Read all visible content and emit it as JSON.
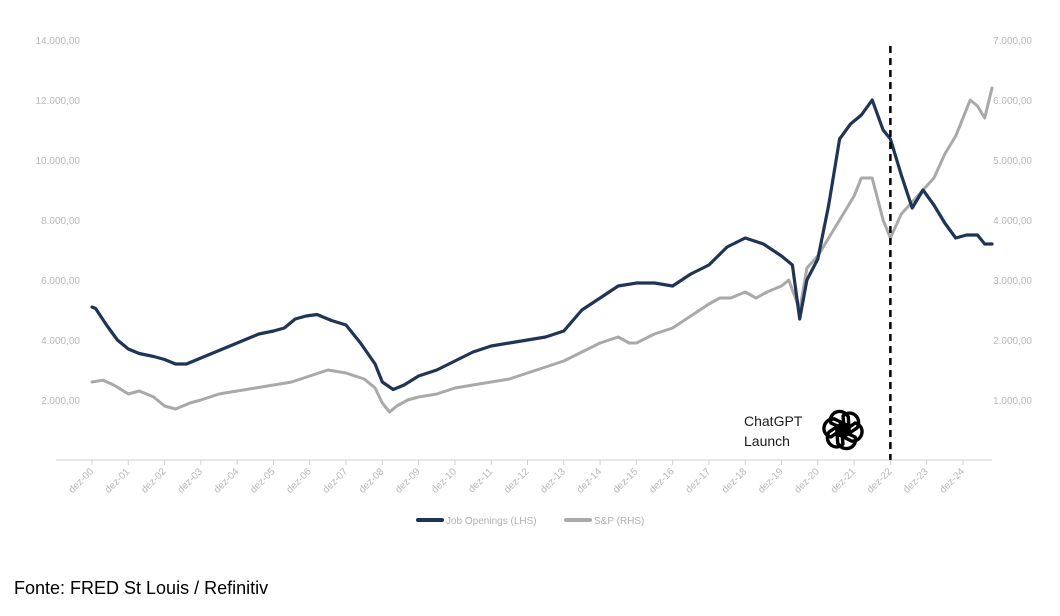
{
  "source_note": "Fonte: FRED St Louis / Refinitiv",
  "annotation": {
    "line1": "ChatGPT",
    "line2": "Launch",
    "x": 22
  },
  "colors": {
    "job_openings": "#1f3556",
    "sp": "#a9a9a9",
    "axis": "#d0d0d0",
    "marker": "#000000"
  },
  "logo": {
    "icon": "openai-logo-icon"
  },
  "chart_data": {
    "type": "line",
    "title": "",
    "xlabel": "",
    "x_ticks": [
      "dez-00",
      "dez-01",
      "dez-02",
      "dez-03",
      "dez-04",
      "dez-05",
      "dez-06",
      "dez-07",
      "dez-08",
      "dez-09",
      "dez-10",
      "dez-11",
      "dez-12",
      "dez-13",
      "dez-14",
      "dez-15",
      "dez-16",
      "dez-17",
      "dez-18",
      "dez-19",
      "dez-20",
      "dez-21",
      "dez-22",
      "dez-23",
      "dez-24"
    ],
    "xlim": [
      0,
      24.8
    ],
    "y_left": {
      "label": "",
      "lim": [
        0,
        14000
      ],
      "ticks": [
        "14.000,00",
        "12.000,00",
        "10.000,00",
        "8.000,00",
        "6.000,00",
        "4.000,00",
        "2.000,00"
      ],
      "tick_values": [
        14000,
        12000,
        10000,
        8000,
        6000,
        4000,
        2000
      ]
    },
    "y_right": {
      "label": "",
      "lim": [
        0,
        7000
      ],
      "ticks": [
        "7.000,00",
        "6.000,00",
        "5.000,00",
        "4.000,00",
        "3.000,00",
        "2.000,00",
        "1.000,00"
      ],
      "tick_values": [
        7000,
        6000,
        5000,
        4000,
        3000,
        2000,
        1000
      ]
    },
    "legend_position": "bottom-center",
    "series": [
      {
        "name": "Job Openings (LHS)",
        "axis": "left",
        "x": [
          0,
          0.1,
          0.4,
          0.7,
          1.0,
          1.3,
          1.7,
          2.0,
          2.3,
          2.6,
          3.0,
          3.4,
          3.8,
          4.2,
          4.6,
          5.0,
          5.3,
          5.6,
          5.9,
          6.2,
          6.6,
          7.0,
          7.4,
          7.8,
          8.0,
          8.3,
          8.6,
          9.0,
          9.5,
          10.0,
          10.5,
          11.0,
          11.5,
          12.0,
          12.5,
          13.0,
          13.5,
          14.0,
          14.5,
          15.0,
          15.5,
          16.0,
          16.5,
          17.0,
          17.5,
          18.0,
          18.5,
          19.0,
          19.3,
          19.5,
          19.7,
          20.0,
          20.3,
          20.6,
          20.9,
          21.2,
          21.5,
          21.8,
          22.0,
          22.3,
          22.6,
          22.9,
          23.2,
          23.5,
          23.8,
          24.1,
          24.4,
          24.6,
          24.8
        ],
        "values": [
          5100,
          5050,
          4500,
          4000,
          3700,
          3550,
          3450,
          3350,
          3200,
          3200,
          3400,
          3600,
          3800,
          4000,
          4200,
          4300,
          4400,
          4700,
          4800,
          4850,
          4650,
          4500,
          3900,
          3200,
          2600,
          2350,
          2500,
          2800,
          3000,
          3300,
          3600,
          3800,
          3900,
          4000,
          4100,
          4300,
          5000,
          5400,
          5800,
          5900,
          5900,
          5800,
          6200,
          6500,
          7100,
          7400,
          7200,
          6800,
          6500,
          4700,
          6000,
          6700,
          8500,
          10700,
          11200,
          11500,
          12000,
          11000,
          10700,
          9500,
          8400,
          9000,
          8500,
          7900,
          7400,
          7500,
          7500,
          7200,
          7200
        ]
      },
      {
        "name": "S&P (RHS)",
        "axis": "right",
        "x": [
          0,
          0.3,
          0.6,
          1.0,
          1.3,
          1.7,
          2.0,
          2.3,
          2.7,
          3.0,
          3.5,
          4.0,
          4.5,
          5.0,
          5.5,
          6.0,
          6.5,
          7.0,
          7.5,
          7.8,
          8.0,
          8.2,
          8.4,
          8.7,
          9.0,
          9.5,
          10.0,
          10.5,
          11.0,
          11.5,
          12.0,
          12.5,
          13.0,
          13.5,
          14.0,
          14.5,
          14.8,
          15.0,
          15.5,
          16.0,
          16.5,
          17.0,
          17.3,
          17.6,
          18.0,
          18.3,
          18.6,
          19.0,
          19.2,
          19.5,
          19.7,
          20.0,
          20.3,
          20.6,
          21.0,
          21.2,
          21.5,
          21.8,
          22.0,
          22.3,
          22.6,
          22.9,
          23.2,
          23.5,
          23.8,
          24.0,
          24.2,
          24.4,
          24.6,
          24.8
        ],
        "values": [
          1300,
          1330,
          1250,
          1100,
          1150,
          1050,
          900,
          850,
          950,
          1000,
          1100,
          1150,
          1200,
          1250,
          1300,
          1400,
          1500,
          1450,
          1350,
          1200,
          950,
          800,
          900,
          1000,
          1050,
          1100,
          1200,
          1250,
          1300,
          1350,
          1450,
          1550,
          1650,
          1800,
          1950,
          2050,
          1950,
          1950,
          2100,
          2200,
          2400,
          2600,
          2700,
          2700,
          2800,
          2700,
          2800,
          2900,
          3000,
          2500,
          3200,
          3400,
          3700,
          4000,
          4400,
          4700,
          4700,
          4000,
          3700,
          4100,
          4300,
          4500,
          4700,
          5100,
          5400,
          5700,
          6000,
          5900,
          5700,
          6200
        ]
      }
    ]
  }
}
